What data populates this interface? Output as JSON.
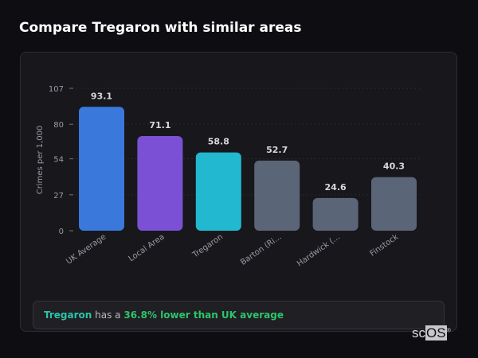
{
  "header": {
    "title": "Compare Tregaron with similar areas"
  },
  "chart_data": {
    "type": "bar",
    "categories": [
      "UK Average",
      "Local Area",
      "Tregaron",
      "Barton (Ri...",
      "Hardwick (...",
      "Finstock"
    ],
    "values": [
      93.1,
      71.1,
      58.8,
      52.7,
      24.6,
      40.3
    ],
    "value_labels": [
      "93.1",
      "71.1",
      "58.8",
      "52.7",
      "24.6",
      "40.3"
    ],
    "colors": [
      "#3a78dc",
      "#7b50d4",
      "#22b8d0",
      "#5a6577",
      "#5a6577",
      "#5a6577"
    ],
    "ylabel": "Crimes per 1,000",
    "yticks": [
      0,
      27,
      54,
      80,
      107
    ],
    "ylim": [
      0,
      107
    ],
    "grid": true
  },
  "summary": {
    "area": "Tregaron",
    "middle": " has a ",
    "highlight": "36.8% lower than UK average"
  },
  "logo": {
    "text_a": "sc",
    "text_b": "OS",
    "mark": "®"
  }
}
